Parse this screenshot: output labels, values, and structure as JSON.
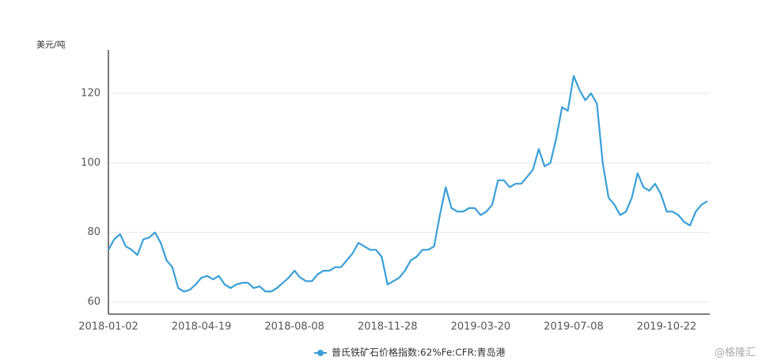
{
  "chart_data": {
    "type": "line",
    "y_axis_label": "美元/吨",
    "annotation": "@格隆汇",
    "categories": [
      "2018-01-02",
      null,
      null,
      null,
      null,
      null,
      null,
      null,
      null,
      null,
      null,
      null,
      null,
      null,
      null,
      null,
      "2018-04-19",
      null,
      null,
      null,
      null,
      null,
      null,
      null,
      null,
      null,
      null,
      null,
      null,
      null,
      null,
      null,
      "2018-08-08",
      null,
      null,
      null,
      null,
      null,
      null,
      null,
      null,
      null,
      null,
      null,
      null,
      null,
      null,
      null,
      "2018-11-28",
      null,
      null,
      null,
      null,
      null,
      null,
      null,
      null,
      null,
      null,
      null,
      null,
      null,
      null,
      null,
      "2019-03-20",
      null,
      null,
      null,
      null,
      null,
      null,
      null,
      null,
      null,
      null,
      null,
      null,
      null,
      null,
      null,
      "2019-07-08",
      null,
      null,
      null,
      null,
      null,
      null,
      null,
      null,
      null,
      null,
      null,
      null,
      null,
      null,
      null,
      "2019-10-22",
      null,
      null,
      null,
      null,
      null,
      null,
      null
    ],
    "series": [
      {
        "name": "普氏铁矿石价格指数:62%Fe:CFR:青岛港",
        "color": "#3a9fd6",
        "values": [
          75,
          78,
          79.5,
          76,
          75,
          73.5,
          78,
          78.5,
          80,
          77,
          72,
          70,
          64,
          63,
          63.5,
          65,
          67,
          67.5,
          66.5,
          67.5,
          65,
          64,
          65,
          65.5,
          65.5,
          64,
          64.5,
          63,
          63,
          64,
          65.5,
          67,
          69,
          67,
          66,
          66,
          68,
          69,
          69,
          70,
          70,
          72,
          74,
          77,
          76,
          75,
          75,
          73,
          65,
          66,
          67,
          69,
          72,
          73,
          75,
          75,
          76,
          85,
          93,
          87,
          86,
          86,
          87,
          87,
          85,
          86,
          88,
          95,
          95,
          93,
          94,
          94,
          96,
          98,
          104,
          99,
          100,
          107,
          116,
          115,
          125,
          121,
          118,
          120,
          117,
          100,
          90,
          88,
          85,
          86,
          90,
          97,
          93,
          92,
          94,
          91,
          86,
          86,
          85,
          83,
          82,
          86,
          88,
          89
        ]
      }
    ],
    "ylim": [
      56.5,
      132.5
    ],
    "yticks": [
      60,
      80,
      100,
      120
    ],
    "grid": true
  }
}
